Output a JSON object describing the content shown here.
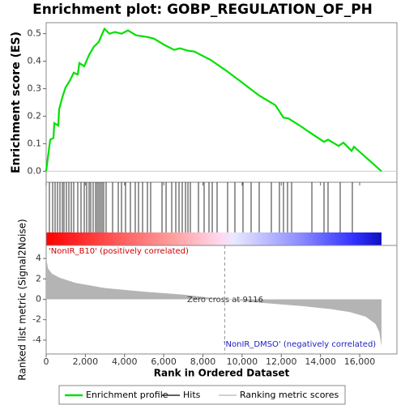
{
  "chart_data": [
    {
      "type": "line",
      "title": "Enrichment plot: GOBP_REGULATION_OF_PH",
      "ylabel": "Enrichment score (ES)",
      "xlim": [
        0,
        17900
      ],
      "ylim": [
        -0.04,
        0.54
      ],
      "yticks": [
        {
          "value": 0,
          "label": "0.0"
        },
        0.1,
        0.2,
        0.3,
        0.4,
        0.5
      ],
      "x": [
        0,
        83,
        207,
        372,
        413,
        620,
        661,
        827,
        992,
        1199,
        1405,
        1612,
        1695,
        1943,
        2191,
        2439,
        2687,
        2811,
        2977,
        3225,
        3514,
        3845,
        4175,
        4589,
        5168,
        5498,
        6036,
        6532,
        6821,
        7234,
        7565,
        8392,
        9219,
        10045,
        10872,
        11699,
        12112,
        12361,
        12939,
        13559,
        14179,
        14386,
        14924,
        15172,
        15585,
        15709,
        17115
      ],
      "series": [
        {
          "name": "Enrichment profile",
          "color": "#00e000",
          "values": [
            0,
            0.047,
            0.115,
            0.121,
            0.175,
            0.166,
            0.225,
            0.269,
            0.305,
            0.328,
            0.358,
            0.352,
            0.393,
            0.382,
            0.423,
            0.453,
            0.47,
            0.491,
            0.518,
            0.5,
            0.506,
            0.5,
            0.512,
            0.494,
            0.488,
            0.482,
            0.459,
            0.441,
            0.447,
            0.438,
            0.435,
            0.405,
            0.364,
            0.32,
            0.275,
            0.24,
            0.195,
            0.192,
            0.166,
            0.136,
            0.107,
            0.115,
            0.092,
            0.104,
            0.074,
            0.089,
            0
          ]
        }
      ]
    },
    {
      "type": "rug",
      "xlim": [
        0,
        17900
      ],
      "x": [
        165,
        331,
        455,
        579,
        703,
        827,
        909,
        1033,
        1158,
        1282,
        1406,
        1612,
        1778,
        1943,
        2067,
        2191,
        2274,
        2398,
        2522,
        2604,
        2687,
        2770,
        2853,
        2935,
        3059,
        3390,
        3679,
        3845,
        4051,
        4299,
        4547,
        4713,
        4920,
        5168,
        5333,
        5912,
        6119,
        6408,
        6615,
        6780,
        6945,
        7111,
        7235,
        7359,
        7772,
        8061,
        8309,
        8475,
        8723,
        9260,
        9632,
        10045,
        10459,
        10872,
        11492,
        11905,
        12112,
        12319,
        12526,
        13560,
        14180,
        14386,
        15006,
        15626
      ],
      "series": [
        {
          "name": "Hits",
          "color": "#000000"
        }
      ]
    },
    {
      "type": "area",
      "xlabel": "Rank in Ordered Dataset",
      "ylabel": "Ranked list metric (Signal2Noise)",
      "xlim": [
        0,
        17900
      ],
      "ylim": [
        -5.36,
        5.28
      ],
      "xticks": [
        0,
        {
          "value": 2000,
          "label": "2,000"
        },
        {
          "value": 4000,
          "label": "4,000"
        },
        {
          "value": 6000,
          "label": "6,000"
        },
        {
          "value": 8000,
          "label": "8,000"
        },
        {
          "value": 10000,
          "label": "10,000"
        },
        {
          "value": 12000,
          "label": "12,000"
        },
        {
          "value": 14000,
          "label": "14,000"
        },
        {
          "value": 16000,
          "label": "16,000"
        }
      ],
      "yticks": [
        -4,
        -2,
        0,
        2,
        4
      ],
      "x": [
        0,
        100,
        300,
        700,
        1500,
        3000,
        5000,
        7000,
        9116,
        11000,
        13000,
        14500,
        15500,
        16300,
        16800,
        17000,
        17115
      ],
      "series": [
        {
          "name": "Ranking metric scores",
          "color": "#b4b4b4",
          "values": [
            4.0,
            3.0,
            2.5,
            2.1,
            1.6,
            1.1,
            0.75,
            0.45,
            0,
            -0.35,
            -0.65,
            -0.95,
            -1.25,
            -1.7,
            -2.4,
            -3.2,
            -4.6
          ]
        }
      ],
      "zero_cross": 9116,
      "annotations": [
        "'NonIR_B10' (positively correlated)",
        "Zero cross at 9116",
        "'NonIR_DMSO' (negatively correlated)"
      ]
    }
  ]
}
